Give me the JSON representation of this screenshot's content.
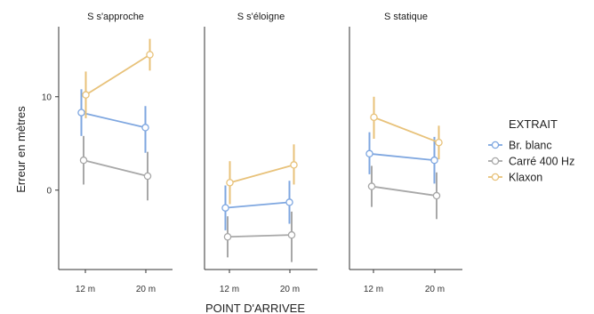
{
  "chart_data": {
    "type": "line",
    "xlabel": "POINT D'ARRIVEE",
    "ylabel": "Erreur en mètres",
    "ylim": [
      -8.5,
      17.5
    ],
    "yticks": [
      0,
      10
    ],
    "categories": [
      "12 m",
      "20 m"
    ],
    "grid": false,
    "legend": {
      "title": "EXTRAIT",
      "position": "right"
    },
    "series_styles": [
      {
        "name": "Br. blanc",
        "color": "#7fa7e0"
      },
      {
        "name": "Carré 400 Hz",
        "color": "#a8a8a8"
      },
      {
        "name": "Klaxon",
        "color": "#e8c27a"
      }
    ],
    "facets": [
      {
        "title": "S s'approche",
        "series": [
          {
            "name": "Br. blanc",
            "values": [
              8.3,
              6.7
            ],
            "lower": [
              5.8,
              4.0
            ],
            "upper": [
              10.8,
              9.0
            ]
          },
          {
            "name": "Carré 400 Hz",
            "values": [
              3.2,
              1.5
            ],
            "lower": [
              0.6,
              -1.1
            ],
            "upper": [
              5.8,
              4.1
            ]
          },
          {
            "name": "Klaxon",
            "values": [
              10.2,
              14.5
            ],
            "lower": [
              7.7,
              12.8
            ],
            "upper": [
              12.7,
              16.2
            ]
          }
        ]
      },
      {
        "title": "S s'éloigne",
        "series": [
          {
            "name": "Br. blanc",
            "values": [
              -1.9,
              -1.3
            ],
            "lower": [
              -4.3,
              -3.6
            ],
            "upper": [
              0.5,
              1.0
            ]
          },
          {
            "name": "Carré 400 Hz",
            "values": [
              -5.0,
              -4.8
            ],
            "lower": [
              -7.2,
              -7.7
            ],
            "upper": [
              -2.8,
              -2.3
            ]
          },
          {
            "name": "Klaxon",
            "values": [
              0.8,
              2.7
            ],
            "lower": [
              -1.5,
              0.6
            ],
            "upper": [
              3.1,
              4.9
            ]
          }
        ]
      },
      {
        "title": "S statique",
        "series": [
          {
            "name": "Br. blanc",
            "values": [
              3.9,
              3.2
            ],
            "lower": [
              1.7,
              0.7
            ],
            "upper": [
              6.2,
              5.7
            ]
          },
          {
            "name": "Carré 400 Hz",
            "values": [
              0.4,
              -0.6
            ],
            "lower": [
              -1.8,
              -3.1
            ],
            "upper": [
              2.6,
              1.9
            ]
          },
          {
            "name": "Klaxon",
            "values": [
              7.8,
              5.1
            ],
            "lower": [
              5.5,
              3.3
            ],
            "upper": [
              10.0,
              6.9
            ]
          }
        ]
      }
    ]
  }
}
